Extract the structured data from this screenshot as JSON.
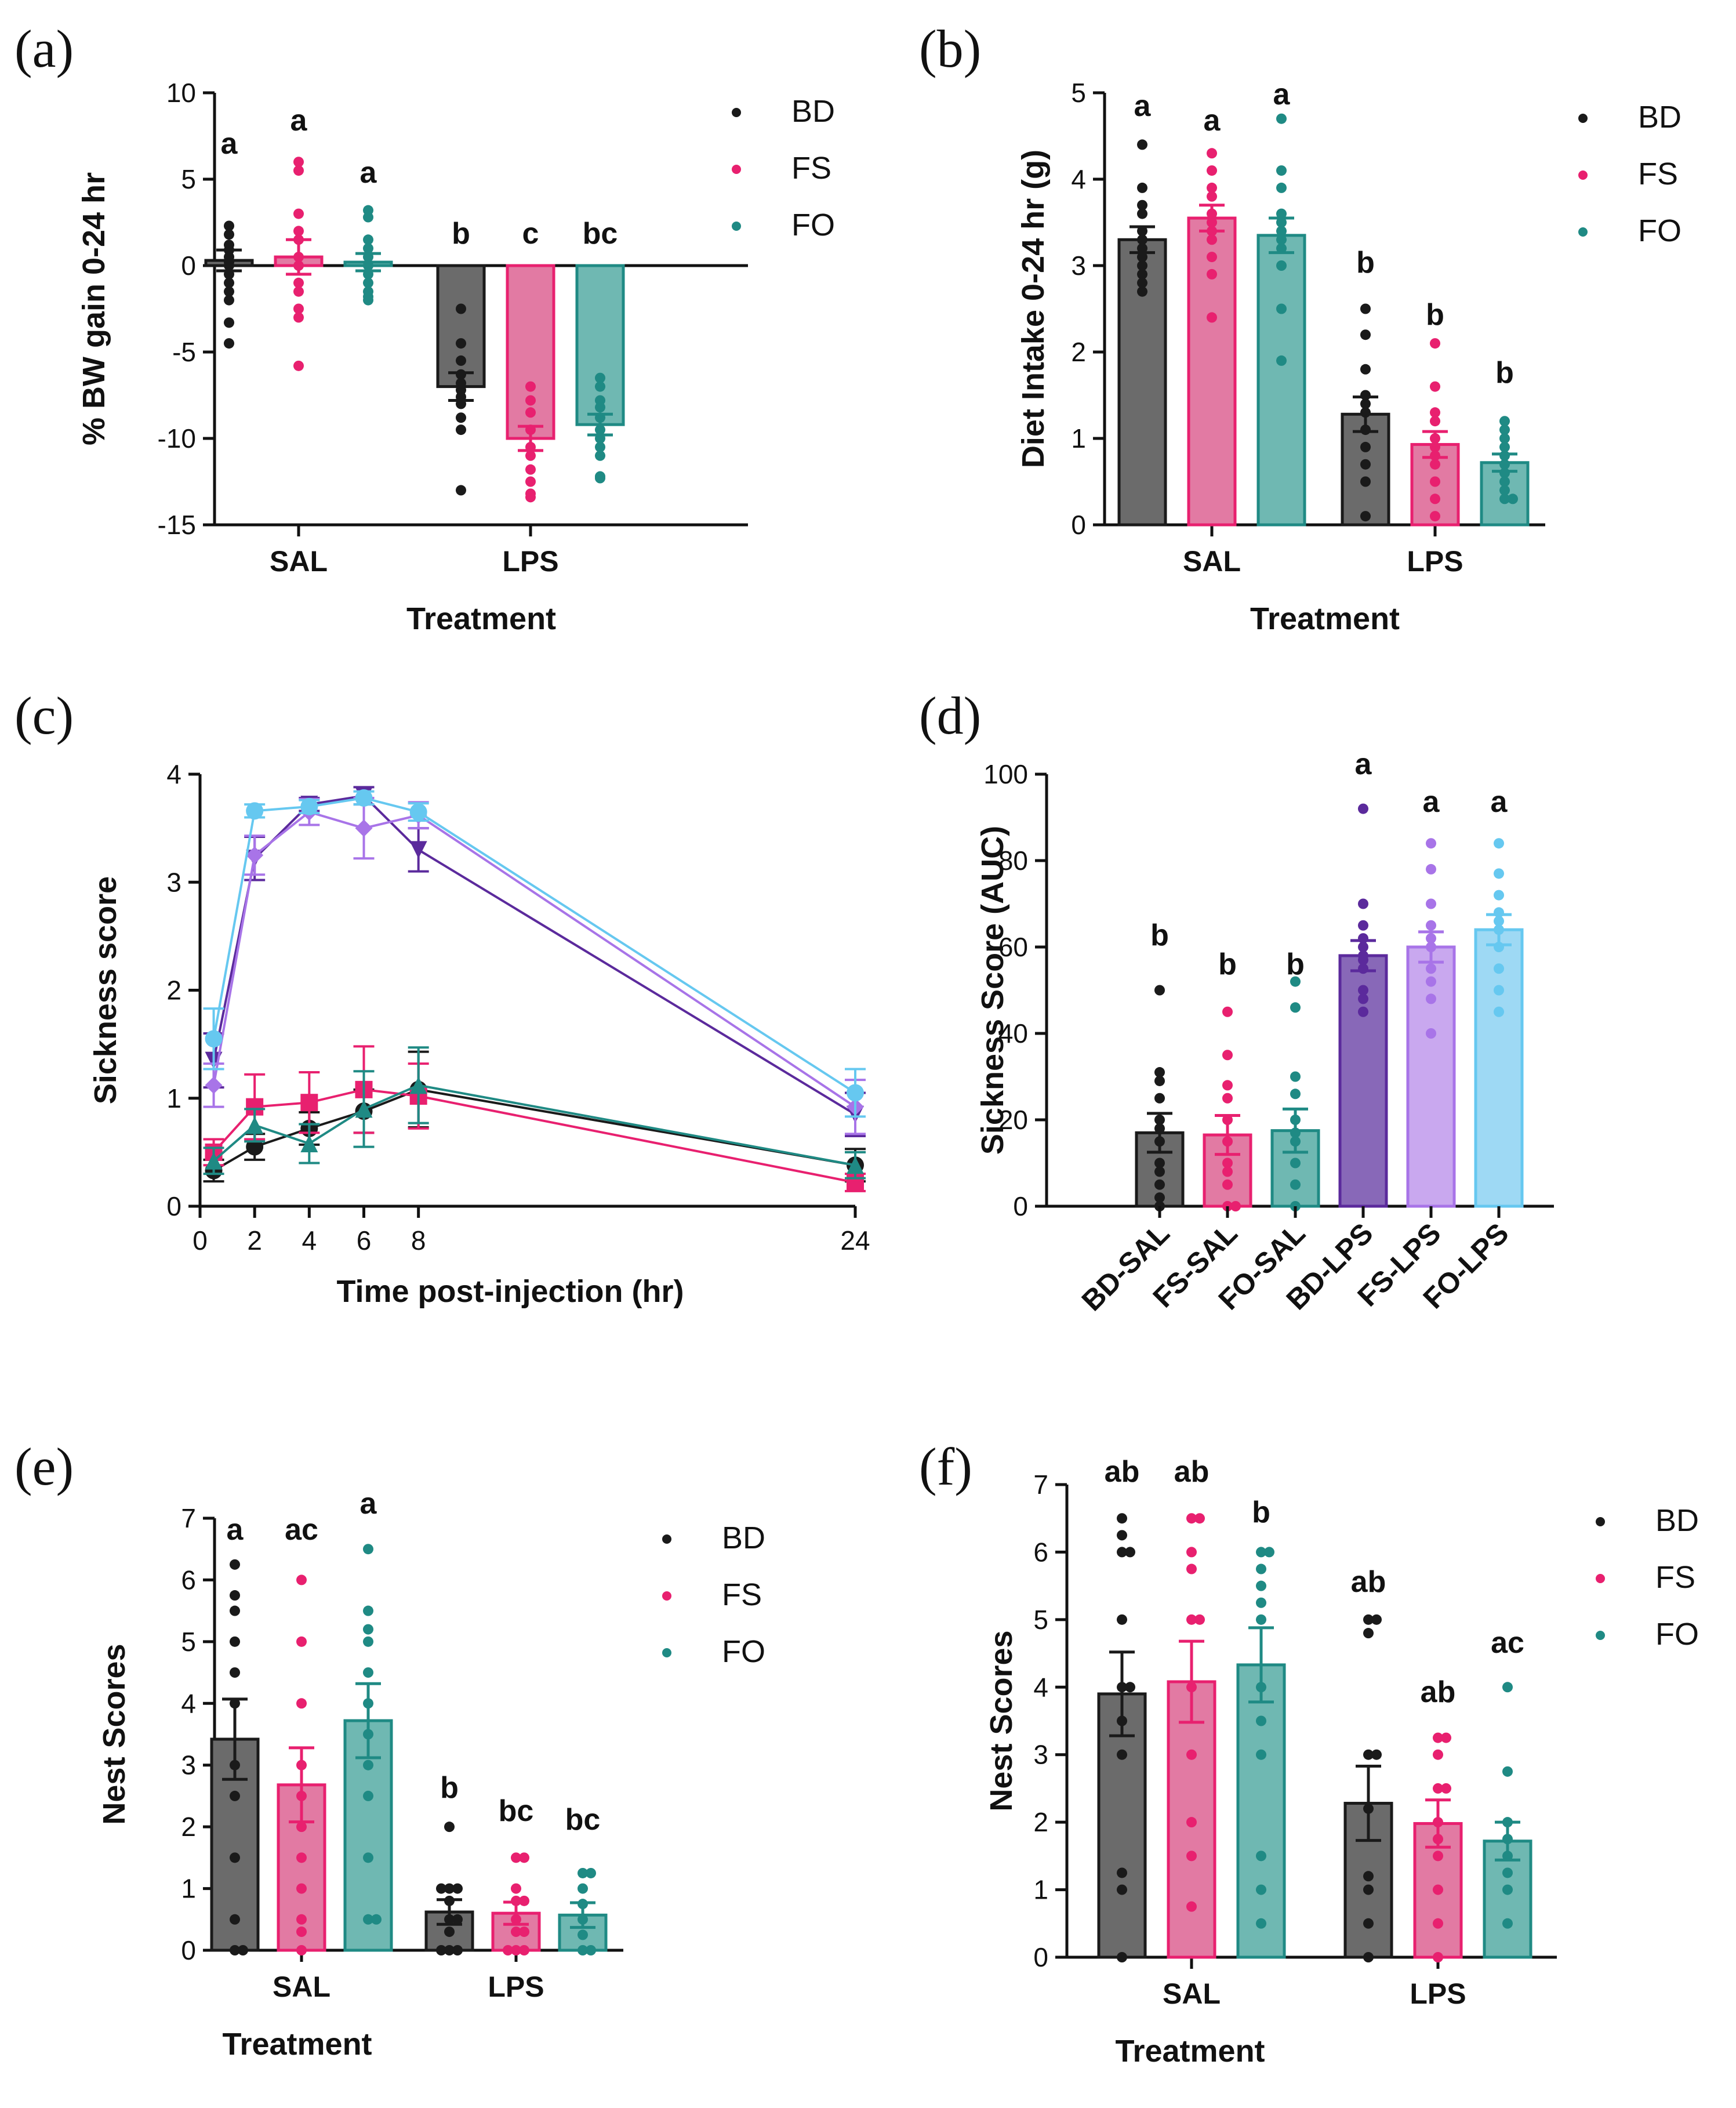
{
  "colors": {
    "BD": "#1a1a1a",
    "BD_bar": "#6b6b6b",
    "FS": "#e8206f",
    "FS_bar": "#e27aa3",
    "FO": "#1f8a84",
    "FO_bar": "#6fb8b2",
    "BD_LPS": "#5b2a9c",
    "BD_LPS_bar": "#8868b8",
    "FS_LPS": "#a874e8",
    "FS_LPS_bar": "#c9a8ef",
    "FO_LPS": "#66c8f0",
    "FO_LPS_bar": "#9ed9f4"
  },
  "chart_data": [
    {
      "panel": "(a)",
      "type": "bar",
      "xlabel": "Treatment",
      "ylabel": "%  BW gain 0-24 hr",
      "ylim": [
        -15,
        10
      ],
      "yticks": [
        "10",
        "5",
        "0",
        "-5",
        "-10",
        "-15"
      ],
      "categories": [
        "SAL",
        "LPS"
      ],
      "legend": [
        "BD",
        "FS",
        "FO"
      ],
      "series": [
        {
          "name": "BD",
          "values": [
            0.3,
            -7.0
          ],
          "sem": [
            0.6,
            0.8
          ],
          "letters": [
            "a",
            "b"
          ],
          "points": [
            [
              2.3,
              1.8,
              1.2,
              0.9,
              0.5,
              0.2,
              0,
              -0.5,
              -1.0,
              -1.5,
              -2.0,
              -3.3,
              -4.5
            ],
            [
              -2.5,
              -4.5,
              -5.5,
              -6.3,
              -6.8,
              -7.2,
              -7.6,
              -8.0,
              -8.8,
              -9.5,
              -13.0
            ]
          ]
        },
        {
          "name": "FS",
          "values": [
            0.5,
            -10.0
          ],
          "sem": [
            1.0,
            0.7
          ],
          "letters": [
            "a",
            "c"
          ],
          "points": [
            [
              6.0,
              5.5,
              3.0,
              2.0,
              1.5,
              0.5,
              0,
              -1.0,
              -1.5,
              -2.5,
              -3.0,
              -5.8
            ],
            [
              -7.0,
              -7.8,
              -8.5,
              -9.5,
              -10.5,
              -11.0,
              -11.8,
              -12.5,
              -13.2,
              -13.4
            ]
          ]
        },
        {
          "name": "FO",
          "values": [
            0.2,
            -9.2
          ],
          "sem": [
            0.5,
            0.6
          ],
          "letters": [
            "a",
            "bc"
          ],
          "points": [
            [
              3.2,
              2.8,
              1.5,
              1.0,
              0.5,
              0,
              -0.5,
              -1.0,
              -1.5,
              -1.8,
              -2.0
            ],
            [
              -6.5,
              -7.0,
              -7.8,
              -8.2,
              -8.8,
              -9.5,
              -10.0,
              -10.5,
              -11.0,
              -12.2,
              -12.3
            ]
          ]
        }
      ]
    },
    {
      "panel": "(b)",
      "type": "bar",
      "xlabel": "Treatment",
      "ylabel": "Diet Intake 0-24 hr (g)",
      "ylim": [
        0,
        5
      ],
      "yticks": [
        "0",
        "1",
        "2",
        "3",
        "4",
        "5"
      ],
      "categories": [
        "SAL",
        "LPS"
      ],
      "legend": [
        "BD",
        "FS",
        "FO"
      ],
      "series": [
        {
          "name": "BD",
          "values": [
            3.3,
            1.28
          ],
          "sem": [
            0.15,
            0.2
          ],
          "letters": [
            "a",
            "b"
          ],
          "points": [
            [
              4.4,
              3.9,
              3.7,
              3.6,
              3.4,
              3.3,
              3.2,
              3.1,
              3.0,
              2.9,
              2.8,
              2.7
            ],
            [
              2.5,
              2.2,
              1.8,
              1.5,
              1.4,
              1.3,
              1.1,
              0.9,
              0.7,
              0.5,
              0.1
            ]
          ]
        },
        {
          "name": "FS",
          "values": [
            3.55,
            0.93
          ],
          "sem": [
            0.15,
            0.15
          ],
          "letters": [
            "a",
            "b"
          ],
          "points": [
            [
              4.3,
              4.1,
              3.9,
              3.8,
              3.6,
              3.5,
              3.4,
              3.3,
              3.1,
              2.9,
              2.4
            ],
            [
              2.1,
              1.6,
              1.3,
              1.2,
              1.0,
              0.9,
              0.8,
              0.7,
              0.5,
              0.3,
              0.1
            ]
          ]
        },
        {
          "name": "FO",
          "values": [
            3.35,
            0.72
          ],
          "sem": [
            0.2,
            0.1
          ],
          "letters": [
            "a",
            "b"
          ],
          "points": [
            [
              4.7,
              4.1,
              3.9,
              3.6,
              3.5,
              3.4,
              3.3,
              3.2,
              3.0,
              2.5,
              1.9
            ],
            [
              1.2,
              1.1,
              1.0,
              0.9,
              0.8,
              0.7,
              0.6,
              0.5,
              0.4,
              0.3,
              0.3
            ]
          ]
        }
      ]
    },
    {
      "panel": "(c)",
      "type": "line",
      "xlabel": "Time post-injection (hr)",
      "ylabel": "Sickness score",
      "xlim": [
        0,
        24
      ],
      "ylim": [
        0,
        4
      ],
      "xticks": [
        "0",
        "2",
        "4",
        "6",
        "8",
        "24"
      ],
      "yticks": [
        "0",
        "1",
        "2",
        "3",
        "4"
      ],
      "x": [
        0.5,
        2,
        4,
        6,
        8,
        24
      ],
      "series": [
        {
          "name": "BD-SAL",
          "marker": "circle",
          "values": [
            0.33,
            0.55,
            0.72,
            0.88,
            1.08,
            0.38
          ],
          "sem": [
            0.1,
            0.12,
            0.15,
            0.2,
            0.35,
            0.15
          ]
        },
        {
          "name": "FS-SAL",
          "marker": "square",
          "values": [
            0.5,
            0.92,
            0.96,
            1.08,
            1.02,
            0.22
          ],
          "sem": [
            0.12,
            0.3,
            0.28,
            0.4,
            0.3,
            0.08
          ]
        },
        {
          "name": "FO-SAL",
          "marker": "triangle",
          "values": [
            0.42,
            0.75,
            0.58,
            0.9,
            1.12,
            0.38
          ],
          "sem": [
            0.12,
            0.15,
            0.18,
            0.35,
            0.35,
            0.12
          ]
        },
        {
          "name": "BD-LPS",
          "marker": "triangle-down",
          "values": [
            1.35,
            3.22,
            3.72,
            3.8,
            3.3,
            0.85
          ],
          "sem": [
            0.25,
            0.2,
            0.06,
            0.08,
            0.2,
            0.2
          ]
        },
        {
          "name": "FS-LPS",
          "marker": "diamond",
          "values": [
            1.12,
            3.25,
            3.65,
            3.5,
            3.62,
            0.92
          ],
          "sem": [
            0.2,
            0.18,
            0.12,
            0.28,
            0.12,
            0.25
          ]
        },
        {
          "name": "FO-LPS",
          "marker": "circle",
          "values": [
            1.55,
            3.66,
            3.7,
            3.78,
            3.65,
            1.05
          ],
          "sem": [
            0.28,
            0.06,
            0.06,
            0.06,
            0.08,
            0.22
          ]
        }
      ]
    },
    {
      "panel": "(d)",
      "type": "bar",
      "xlabel": "",
      "ylabel": "Sickness Score (AUC)",
      "ylim": [
        0,
        100
      ],
      "yticks": [
        "0",
        "20",
        "40",
        "60",
        "80",
        "100"
      ],
      "categories": [
        "BD-SAL",
        "FS-SAL",
        "FO-SAL",
        "BD-LPS",
        "FS-LPS",
        "FO-LPS"
      ],
      "values": [
        17,
        16.5,
        17.5,
        58,
        60,
        64
      ],
      "sem": [
        4.5,
        4.5,
        5,
        3.5,
        3.5,
        3.5
      ],
      "letters": [
        "b",
        "b",
        "b",
        "a",
        "a",
        "a"
      ],
      "points": [
        [
          50,
          31,
          29,
          25,
          20,
          18,
          15,
          10,
          8,
          5,
          2,
          0
        ],
        [
          45,
          35,
          28,
          25,
          20,
          15,
          10,
          8,
          5,
          0,
          0
        ],
        [
          52,
          46,
          30,
          26,
          20,
          17,
          15,
          10,
          5,
          0
        ],
        [
          92,
          70,
          65,
          62,
          60,
          58,
          57,
          55,
          50,
          48,
          45
        ],
        [
          84,
          78,
          70,
          65,
          62,
          60,
          55,
          52,
          48,
          40
        ],
        [
          84,
          77,
          72,
          68,
          66,
          64,
          60,
          55,
          50,
          45
        ]
      ]
    },
    {
      "panel": "(e)",
      "type": "bar",
      "xlabel": "Treatment",
      "ylabel": "Nest Scores",
      "ylim": [
        0,
        7
      ],
      "yticks": [
        "0",
        "1",
        "2",
        "3",
        "4",
        "5",
        "6",
        "7"
      ],
      "categories": [
        "SAL",
        "LPS"
      ],
      "legend": [
        "BD",
        "FS",
        "FO"
      ],
      "series": [
        {
          "name": "BD",
          "values": [
            3.42,
            0.62
          ],
          "sem": [
            0.65,
            0.2
          ],
          "letters": [
            "a",
            "b"
          ],
          "points": [
            [
              6.25,
              5.75,
              5.5,
              5.0,
              4.5,
              4.0,
              3.0,
              2.5,
              1.5,
              0.5,
              0,
              0
            ],
            [
              2.0,
              1.0,
              1.0,
              1.0,
              0.8,
              0.5,
              0.5,
              0.3,
              0,
              0,
              0
            ]
          ]
        },
        {
          "name": "FS",
          "values": [
            2.68,
            0.6
          ],
          "sem": [
            0.6,
            0.18
          ],
          "letters": [
            "ac",
            "bc"
          ],
          "points": [
            [
              6.0,
              5.0,
              4.0,
              3.0,
              2.5,
              2.0,
              1.5,
              1.0,
              0.5,
              0.3,
              0
            ],
            [
              1.5,
              1.5,
              1.0,
              0.8,
              0.8,
              0.5,
              0.3,
              0.3,
              0,
              0,
              0
            ]
          ]
        },
        {
          "name": "FO",
          "values": [
            3.72,
            0.57
          ],
          "sem": [
            0.6,
            0.2
          ],
          "letters": [
            "a",
            "bc"
          ],
          "points": [
            [
              6.5,
              5.5,
              5.2,
              5.0,
              4.5,
              4.0,
              3.5,
              3.0,
              2.5,
              1.5,
              0.5,
              0.5
            ],
            [
              1.25,
              1.25,
              1.0,
              0.75,
              0.5,
              0.25,
              0,
              0
            ]
          ]
        }
      ]
    },
    {
      "panel": "(f)",
      "type": "bar",
      "xlabel": "Treatment",
      "ylabel": "Nest Scores",
      "ylim": [
        0,
        7
      ],
      "yticks": [
        "0",
        "1",
        "2",
        "3",
        "4",
        "5",
        "6",
        "7"
      ],
      "categories": [
        "SAL",
        "LPS"
      ],
      "legend": [
        "BD",
        "FS",
        "FO"
      ],
      "series": [
        {
          "name": "BD",
          "values": [
            3.9,
            2.28
          ],
          "sem": [
            0.62,
            0.55
          ],
          "letters": [
            "ab",
            "ab"
          ],
          "points": [
            [
              6.5,
              6.25,
              6.0,
              6.0,
              5.0,
              4.0,
              4.0,
              3.5,
              3.0,
              1.25,
              1.0,
              0
            ],
            [
              5.0,
              5.0,
              4.8,
              3.0,
              3.0,
              2.2,
              1.2,
              1.0,
              0.5,
              0
            ]
          ]
        },
        {
          "name": "FS",
          "values": [
            4.08,
            1.98
          ],
          "sem": [
            0.6,
            0.35
          ],
          "letters": [
            "ab",
            "ab"
          ],
          "points": [
            [
              6.5,
              6.5,
              6.0,
              5.75,
              5.0,
              5.0,
              4.0,
              3.0,
              2.0,
              1.5,
              0.75
            ],
            [
              3.25,
              3.25,
              3.0,
              2.5,
              2.5,
              2.0,
              1.75,
              1.5,
              1.0,
              0.5,
              0
            ]
          ]
        },
        {
          "name": "FO",
          "values": [
            4.33,
            1.72
          ],
          "sem": [
            0.55,
            0.28
          ],
          "letters": [
            "b",
            "ac"
          ],
          "points": [
            [
              6.0,
              6.0,
              5.75,
              5.5,
              5.25,
              5.0,
              4.0,
              3.5,
              3.0,
              1.5,
              1.0,
              0.5
            ],
            [
              4.0,
              2.75,
              2.0,
              1.75,
              1.5,
              1.25,
              1.0,
              0.5
            ]
          ]
        }
      ]
    }
  ]
}
